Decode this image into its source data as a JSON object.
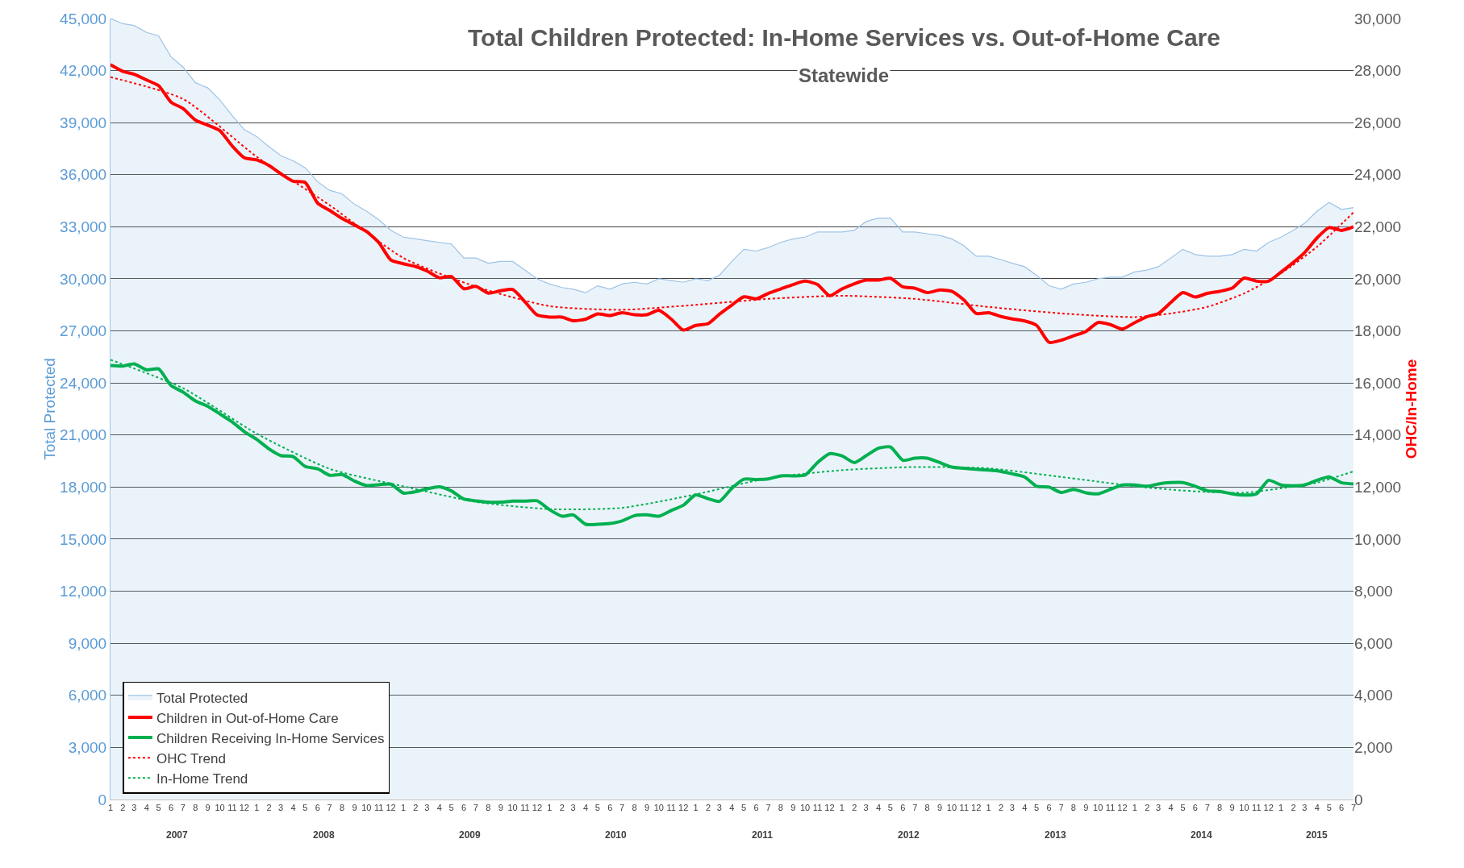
{
  "chart_data": {
    "type": "line",
    "title": "Total Children Protected: In-Home Services vs. Out-of-Home Care",
    "subtitle": "Statewide",
    "ylabel": "Total Protected",
    "y2label": "OHC/In-Home",
    "x": [
      "2007-01",
      "2007-02",
      "2007-03",
      "2007-04",
      "2007-05",
      "2007-06",
      "2007-07",
      "2007-08",
      "2007-09",
      "2007-10",
      "2007-11",
      "2007-12",
      "2008-01",
      "2008-02",
      "2008-03",
      "2008-04",
      "2008-05",
      "2008-06",
      "2008-07",
      "2008-08",
      "2008-09",
      "2008-10",
      "2008-11",
      "2008-12",
      "2009-01",
      "2009-02",
      "2009-03",
      "2009-04",
      "2009-05",
      "2009-06",
      "2009-07",
      "2009-08",
      "2009-09",
      "2009-10",
      "2009-11",
      "2009-12",
      "2010-01",
      "2010-02",
      "2010-03",
      "2010-04",
      "2010-05",
      "2010-06",
      "2010-07",
      "2010-08",
      "2010-09",
      "2010-10",
      "2010-11",
      "2010-12",
      "2011-01",
      "2011-02",
      "2011-03",
      "2011-04",
      "2011-05",
      "2011-06",
      "2011-07",
      "2011-08",
      "2011-09",
      "2011-10",
      "2011-11",
      "2011-12",
      "2012-01",
      "2012-02",
      "2012-03",
      "2012-04",
      "2012-05",
      "2012-06",
      "2012-07",
      "2012-08",
      "2012-09",
      "2012-10",
      "2012-11",
      "2012-12",
      "2013-01",
      "2013-02",
      "2013-03",
      "2013-04",
      "2013-05",
      "2013-06",
      "2013-07",
      "2013-08",
      "2013-09",
      "2013-10",
      "2013-11",
      "2013-12",
      "2014-01",
      "2014-02",
      "2014-03",
      "2014-04",
      "2014-05",
      "2014-06",
      "2014-07",
      "2014-08",
      "2014-09",
      "2014-10",
      "2014-11",
      "2014-12",
      "2015-01",
      "2015-02",
      "2015-03",
      "2015-04",
      "2015-05",
      "2015-06",
      "2015-07"
    ],
    "series": [
      {
        "name": "Total Protected",
        "type": "area",
        "color": "#9dc3e6",
        "values": [
          45000,
          44700,
          44600,
          44200,
          44000,
          42800,
          42200,
          41300,
          41000,
          40300,
          39400,
          38600,
          38200,
          37600,
          37100,
          36800,
          36400,
          35600,
          35100,
          34900,
          34300,
          33900,
          33400,
          32800,
          32400,
          32300,
          32200,
          32100,
          32000,
          31200,
          31200,
          30900,
          31000,
          31000,
          30500,
          30000,
          29700,
          29500,
          29400,
          29200,
          29600,
          29400,
          29700,
          29800,
          29700,
          30000,
          29900,
          29800,
          30000,
          29900,
          30200,
          31000,
          31700,
          31600,
          31800,
          32100,
          32300,
          32400,
          32700,
          32700,
          32700,
          32800,
          33300,
          33500,
          33500,
          32700,
          32700,
          32600,
          32500,
          32300,
          31900,
          31300,
          31300,
          31100,
          30900,
          30700,
          30200,
          29600,
          29400,
          29700,
          29800,
          30000,
          30100,
          30100,
          30400,
          30500,
          30700,
          31200,
          31700,
          31400,
          31300,
          31300,
          31400,
          31700,
          31600,
          32100,
          32400,
          32800,
          33200,
          33900,
          34400,
          34000,
          34100
        ]
      },
      {
        "name": "Children in Out-of-Home Care",
        "axis": "y2",
        "color": "#ff0000",
        "line_style": "solid",
        "values": [
          28230,
          27970,
          27860,
          27640,
          27420,
          26790,
          26540,
          26100,
          25900,
          25690,
          25100,
          24650,
          24570,
          24350,
          24040,
          23750,
          23700,
          22910,
          22630,
          22320,
          22070,
          21820,
          21390,
          20720,
          20580,
          20470,
          20300,
          20040,
          20090,
          19620,
          19710,
          19450,
          19540,
          19590,
          19110,
          18610,
          18530,
          18530,
          18390,
          18450,
          18650,
          18590,
          18700,
          18620,
          18620,
          18790,
          18450,
          18030,
          18210,
          18280,
          18640,
          18990,
          19310,
          19230,
          19440,
          19610,
          19780,
          19910,
          19780,
          19350,
          19610,
          19810,
          19950,
          19950,
          20020,
          19690,
          19640,
          19470,
          19570,
          19520,
          19180,
          18670,
          18700,
          18550,
          18460,
          18380,
          18210,
          17560,
          17640,
          17810,
          17980,
          18320,
          18240,
          18070,
          18320,
          18550,
          18670,
          19090,
          19470,
          19300,
          19440,
          19520,
          19640,
          20030,
          19910,
          19910,
          20260,
          20630,
          21010,
          21570,
          21970,
          21860,
          22000
        ]
      },
      {
        "name": "Children Receiving In-Home Services",
        "axis": "y2",
        "color": "#00b050",
        "line_style": "solid",
        "values": [
          16670,
          16650,
          16730,
          16500,
          16540,
          15900,
          15650,
          15310,
          15100,
          14810,
          14500,
          14130,
          13830,
          13460,
          13210,
          13170,
          12790,
          12700,
          12450,
          12480,
          12230,
          12060,
          12090,
          12110,
          11770,
          11820,
          11930,
          12010,
          11850,
          11540,
          11470,
          11420,
          11420,
          11460,
          11460,
          11470,
          11130,
          10880,
          10930,
          10570,
          10570,
          10600,
          10700,
          10900,
          10930,
          10880,
          11100,
          11300,
          11700,
          11550,
          11450,
          11950,
          12300,
          12290,
          12310,
          12430,
          12430,
          12460,
          12940,
          13280,
          13200,
          12940,
          13200,
          13490,
          13540,
          13030,
          13110,
          13110,
          12940,
          12770,
          12720,
          12680,
          12650,
          12600,
          12510,
          12390,
          12030,
          12000,
          11790,
          11910,
          11780,
          11740,
          11910,
          12080,
          12080,
          12030,
          12120,
          12170,
          12170,
          12030,
          11860,
          11830,
          11740,
          11690,
          11740,
          12260,
          12080,
          12050,
          12080,
          12260,
          12390,
          12170,
          12120
        ]
      },
      {
        "name": "OHC Trend",
        "axis": "y2",
        "color": "#ff0000",
        "line_style": "dotted",
        "x": [
          "2007-01",
          "2007-07",
          "2008-01",
          "2008-07",
          "2009-01",
          "2009-07",
          "2010-01",
          "2010-07",
          "2011-01",
          "2011-07",
          "2012-01",
          "2012-07",
          "2013-01",
          "2013-07",
          "2014-01",
          "2014-04",
          "2014-07",
          "2014-10",
          "2015-01",
          "2015-04",
          "2015-07"
        ],
        "values": [
          27750,
          26910,
          24690,
          22830,
          20800,
          19700,
          18950,
          18810,
          19000,
          19230,
          19350,
          19230,
          18920,
          18670,
          18530,
          18670,
          18920,
          19440,
          20210,
          21230,
          22550
        ]
      },
      {
        "name": "In-Home Trend",
        "axis": "y2",
        "color": "#00b050",
        "line_style": "dotted",
        "x": [
          "2007-01",
          "2007-07",
          "2008-01",
          "2008-07",
          "2009-01",
          "2009-07",
          "2010-01",
          "2010-07",
          "2011-01",
          "2011-07",
          "2012-01",
          "2012-07",
          "2013-01",
          "2013-07",
          "2014-01",
          "2014-04",
          "2014-07",
          "2014-10",
          "2015-01",
          "2015-04",
          "2015-07"
        ],
        "values": [
          16890,
          15800,
          14050,
          12700,
          12030,
          11430,
          11150,
          11200,
          11720,
          12340,
          12650,
          12770,
          12720,
          12390,
          12030,
          11900,
          11810,
          11780,
          11950,
          12170,
          12600
        ]
      }
    ],
    "xlim": [
      "2007-01-01",
      "2015-07-01"
    ],
    "xticks": [
      {
        "value": "2007-01",
        "label": "1"
      },
      {
        "value": "2007-02",
        "label": "2"
      },
      {
        "value": "2007-03",
        "label": "3"
      },
      {
        "value": "2007-04",
        "label": "4"
      },
      {
        "value": "2007-05",
        "label": "5"
      },
      {
        "value": "2007-06",
        "label": "6"
      },
      {
        "value": "2007-07",
        "label": "7"
      },
      {
        "value": "2007-08",
        "label": "8"
      },
      {
        "value": "2007-09",
        "label": "9"
      },
      {
        "value": "2007-10",
        "label": "10"
      },
      {
        "value": "2007-11",
        "label": "11"
      },
      {
        "value": "2007-12",
        "label": "12"
      },
      {
        "value": "2008-01",
        "label": "1"
      },
      {
        "value": "2008-02",
        "label": "2"
      },
      {
        "value": "2008-03",
        "label": "3"
      },
      {
        "value": "2008-04",
        "label": "4"
      },
      {
        "value": "2008-05",
        "label": "5"
      },
      {
        "value": "2008-06",
        "label": "6"
      },
      {
        "value": "2008-07",
        "label": "7"
      },
      {
        "value": "2008-08",
        "label": "8"
      },
      {
        "value": "2008-09",
        "label": "9"
      },
      {
        "value": "2008-10",
        "label": "10"
      },
      {
        "value": "2008-11",
        "label": "11"
      },
      {
        "value": "2008-12",
        "label": "12"
      },
      {
        "value": "2009-01",
        "label": "1"
      },
      {
        "value": "2009-02",
        "label": "2"
      },
      {
        "value": "2009-03",
        "label": "3"
      },
      {
        "value": "2009-04",
        "label": "4"
      },
      {
        "value": "2009-05",
        "label": "5"
      },
      {
        "value": "2009-06",
        "label": "6"
      },
      {
        "value": "2009-07",
        "label": "7"
      },
      {
        "value": "2009-08",
        "label": "8"
      },
      {
        "value": "2009-09",
        "label": "9"
      },
      {
        "value": "2009-10",
        "label": "10"
      },
      {
        "value": "2009-11",
        "label": "11"
      },
      {
        "value": "2009-12",
        "label": "12"
      },
      {
        "value": "2010-01",
        "label": "1"
      },
      {
        "value": "2010-02",
        "label": "2"
      },
      {
        "value": "2010-03",
        "label": "3"
      },
      {
        "value": "2010-04",
        "label": "4"
      },
      {
        "value": "2010-05",
        "label": "5"
      },
      {
        "value": "2010-06",
        "label": "6"
      },
      {
        "value": "2010-07",
        "label": "7"
      },
      {
        "value": "2010-08",
        "label": "8"
      },
      {
        "value": "2010-09",
        "label": "9"
      },
      {
        "value": "2010-10",
        "label": "10"
      },
      {
        "value": "2010-11",
        "label": "11"
      },
      {
        "value": "2010-12",
        "label": "12"
      },
      {
        "value": "2011-01",
        "label": "1"
      },
      {
        "value": "2011-02",
        "label": "2"
      },
      {
        "value": "2011-03",
        "label": "3"
      },
      {
        "value": "2011-04",
        "label": "4"
      },
      {
        "value": "2011-05",
        "label": "5"
      },
      {
        "value": "2011-06",
        "label": "6"
      },
      {
        "value": "2011-07",
        "label": "7"
      },
      {
        "value": "2011-08",
        "label": "8"
      },
      {
        "value": "2011-09",
        "label": "9"
      },
      {
        "value": "2011-10",
        "label": "10"
      },
      {
        "value": "2011-11",
        "label": "11"
      },
      {
        "value": "2011-12",
        "label": "12"
      },
      {
        "value": "2012-01",
        "label": "1"
      },
      {
        "value": "2012-02",
        "label": "2"
      },
      {
        "value": "2012-03",
        "label": "3"
      },
      {
        "value": "2012-04",
        "label": "4"
      },
      {
        "value": "2012-05",
        "label": "5"
      },
      {
        "value": "2012-06",
        "label": "6"
      },
      {
        "value": "2012-07",
        "label": "7"
      },
      {
        "value": "2012-08",
        "label": "8"
      },
      {
        "value": "2012-09",
        "label": "9"
      },
      {
        "value": "2012-10",
        "label": "10"
      },
      {
        "value": "2012-11",
        "label": "11"
      },
      {
        "value": "2012-12",
        "label": "12"
      },
      {
        "value": "2013-01",
        "label": "1"
      },
      {
        "value": "2013-02",
        "label": "2"
      },
      {
        "value": "2013-03",
        "label": "3"
      },
      {
        "value": "2013-04",
        "label": "4"
      },
      {
        "value": "2013-05",
        "label": "5"
      },
      {
        "value": "2013-06",
        "label": "6"
      },
      {
        "value": "2013-07",
        "label": "7"
      },
      {
        "value": "2013-08",
        "label": "8"
      },
      {
        "value": "2013-09",
        "label": "9"
      },
      {
        "value": "2013-10",
        "label": "10"
      },
      {
        "value": "2013-11",
        "label": "11"
      },
      {
        "value": "2013-12",
        "label": "12"
      },
      {
        "value": "2014-01",
        "label": "1"
      },
      {
        "value": "2014-02",
        "label": "2"
      },
      {
        "value": "2014-03",
        "label": "3"
      },
      {
        "value": "2014-04",
        "label": "4"
      },
      {
        "value": "2014-05",
        "label": "5"
      },
      {
        "value": "2014-06",
        "label": "6"
      },
      {
        "value": "2014-07",
        "label": "7"
      },
      {
        "value": "2014-08",
        "label": "8"
      },
      {
        "value": "2014-09",
        "label": "9"
      },
      {
        "value": "2014-10",
        "label": "10"
      },
      {
        "value": "2014-11",
        "label": "11"
      },
      {
        "value": "2014-12",
        "label": "12"
      },
      {
        "value": "2015-01",
        "label": "1"
      },
      {
        "value": "2015-02",
        "label": "2"
      },
      {
        "value": "2015-03",
        "label": "3"
      },
      {
        "value": "2015-04",
        "label": "4"
      },
      {
        "value": "2015-05",
        "label": "5"
      },
      {
        "value": "2015-06",
        "label": "6"
      },
      {
        "value": "2015-07",
        "label": "7"
      }
    ],
    "x2lim": [
      "2007-01-01",
      "2015-07-01"
    ],
    "x2ticks": [
      {
        "value": "2007-06-16",
        "label": "2007"
      },
      {
        "value": "2008-06-16",
        "label": "2008"
      },
      {
        "value": "2009-06-16",
        "label": "2009"
      },
      {
        "value": "2010-06-16",
        "label": "2010"
      },
      {
        "value": "2011-06-16",
        "label": "2011"
      },
      {
        "value": "2012-06-16",
        "label": "2012"
      },
      {
        "value": "2013-06-16",
        "label": "2013"
      },
      {
        "value": "2014-06-16",
        "label": "2014"
      },
      {
        "value": "2015-04-01",
        "label": "2015"
      }
    ],
    "ylim": [
      0,
      45000
    ],
    "yticks": [
      0,
      {
        "value": 3000,
        "label": "3,000"
      },
      {
        "value": 6000,
        "label": "6,000"
      },
      {
        "value": 9000,
        "label": "9,000"
      },
      {
        "value": 12000,
        "label": "12,000"
      },
      {
        "value": 15000,
        "label": "15,000"
      },
      {
        "value": 18000,
        "label": "18,000"
      },
      {
        "value": 21000,
        "label": "21,000"
      },
      {
        "value": 24000,
        "label": "24,000"
      },
      {
        "value": 27000,
        "label": "27,000"
      },
      {
        "value": 30000,
        "label": "30,000"
      },
      {
        "value": 33000,
        "label": "33,000"
      },
      {
        "value": 36000,
        "label": "36,000"
      },
      {
        "value": 39000,
        "label": "39,000"
      },
      {
        "value": 42000,
        "label": "42,000"
      },
      {
        "value": 45000,
        "label": "45,000"
      }
    ],
    "y2lim": [
      0,
      30000
    ],
    "y2ticks": [
      0,
      {
        "value": 2000,
        "label": "2,000"
      },
      {
        "value": 4000,
        "label": "4,000"
      },
      {
        "value": 6000,
        "label": "6,000"
      },
      {
        "value": 8000,
        "label": "8,000"
      },
      {
        "value": 10000,
        "label": "10,000"
      },
      {
        "value": 12000,
        "label": "12,000"
      },
      {
        "value": 14000,
        "label": "14,000"
      },
      {
        "value": 16000,
        "label": "16,000"
      },
      {
        "value": 18000,
        "label": "18,000"
      },
      {
        "value": 20000,
        "label": "20,000"
      },
      {
        "value": 22000,
        "label": "22,000"
      },
      {
        "value": 24000,
        "label": "24,000"
      },
      {
        "value": 26000,
        "label": "26,000"
      },
      {
        "value": 28000,
        "label": "28,000"
      },
      {
        "value": 30000,
        "label": "30,000"
      }
    ],
    "grid": "y",
    "legend": "bottom left",
    "marker": "none"
  }
}
